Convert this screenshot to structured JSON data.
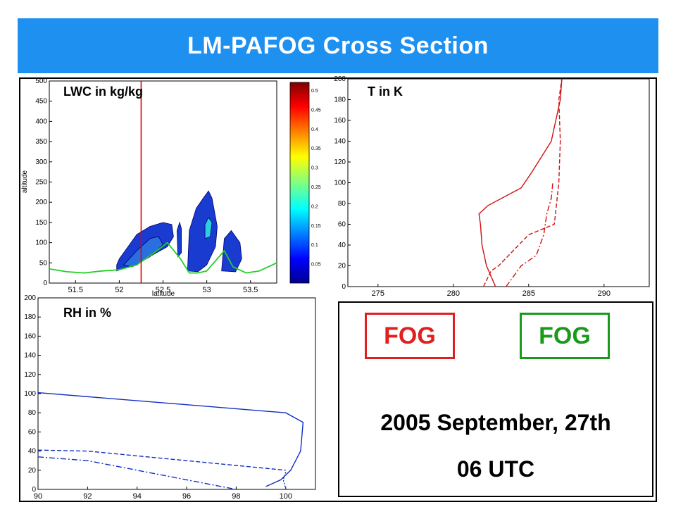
{
  "title": "LM-PAFOG Cross Section",
  "panels": {
    "lwc_label": "LWC in kg/kg",
    "t_label": "T in K",
    "rh_label": "RH in %"
  },
  "info": {
    "fog_red": "FOG",
    "fog_green": "FOG",
    "date": "2005 September, 27th",
    "time": "06 UTC"
  },
  "colors": {
    "banner": "#1e90f0",
    "fog_red": "#e02020",
    "fog_green": "#1a9a1a",
    "t_series": "#d01010",
    "rh_series": "#1030c0"
  },
  "chart_data": [
    {
      "type": "heatmap",
      "title": "LWC in kg/kg",
      "xlabel": "latitude",
      "ylabel": "altitude",
      "x_ticks": [
        "51.5",
        "52",
        "52.5",
        "53",
        "53.5"
      ],
      "y_ticks": [
        "0",
        "50",
        "100",
        "150",
        "200",
        "250",
        "300",
        "350",
        "400",
        "450",
        "500"
      ],
      "xlim": [
        51.2,
        53.8
      ],
      "ylim": [
        0,
        500
      ],
      "colorbar_ticks": [
        "0.05",
        "0.1",
        "0.15",
        "0.2",
        "0.25",
        "0.3",
        "0.35",
        "0.4",
        "0.45",
        "0.5"
      ],
      "vertical_marker_x": 52.25,
      "terrain_line": [
        [
          51.2,
          35
        ],
        [
          51.4,
          28
        ],
        [
          51.6,
          25
        ],
        [
          51.8,
          30
        ],
        [
          52.0,
          33
        ],
        [
          52.2,
          45
        ],
        [
          52.4,
          75
        ],
        [
          52.55,
          100
        ],
        [
          52.7,
          60
        ],
        [
          52.8,
          25
        ],
        [
          52.9,
          25
        ],
        [
          53.0,
          30
        ],
        [
          53.1,
          55
        ],
        [
          53.2,
          80
        ],
        [
          53.3,
          40
        ],
        [
          53.45,
          25
        ],
        [
          53.6,
          30
        ],
        [
          53.8,
          50
        ]
      ]
    },
    {
      "type": "line",
      "title": "T in K",
      "x_ticks": [
        "275",
        "280",
        "285",
        "290"
      ],
      "y_ticks": [
        "0",
        "20",
        "40",
        "60",
        "80",
        "100",
        "120",
        "140",
        "160",
        "180",
        "200"
      ],
      "xlim": [
        273,
        293
      ],
      "ylim": [
        0,
        200
      ],
      "series": [
        {
          "style": "solid",
          "points": [
            [
              282.8,
              0
            ],
            [
              282.5,
              10
            ],
            [
              282.2,
              20
            ],
            [
              281.9,
              40
            ],
            [
              281.8,
              60
            ],
            [
              281.7,
              70
            ],
            [
              282.3,
              78
            ],
            [
              284.5,
              95
            ],
            [
              285.2,
              110
            ],
            [
              286.5,
              140
            ],
            [
              287.1,
              180
            ],
            [
              287.2,
              200
            ]
          ]
        },
        {
          "style": "dashed",
          "points": [
            [
              282.0,
              0
            ],
            [
              282.5,
              15
            ],
            [
              283.0,
              20
            ],
            [
              285.0,
              50
            ],
            [
              286.7,
              60
            ],
            [
              287.0,
              100
            ],
            [
              287.1,
              140
            ],
            [
              287.0,
              180
            ],
            [
              287.2,
              200
            ]
          ]
        },
        {
          "style": "dashdot",
          "points": [
            [
              283.5,
              0
            ],
            [
              284.5,
              20
            ],
            [
              285.5,
              30
            ],
            [
              286.0,
              50
            ],
            [
              286.2,
              70
            ],
            [
              286.5,
              85
            ],
            [
              286.6,
              100
            ]
          ]
        }
      ]
    },
    {
      "type": "line",
      "title": "RH in %",
      "x_ticks": [
        "90",
        "92",
        "94",
        "96",
        "98",
        "100"
      ],
      "y_ticks": [
        "0",
        "20",
        "40",
        "60",
        "80",
        "100",
        "120",
        "140",
        "160",
        "180",
        "200"
      ],
      "xlim": [
        90,
        101.2
      ],
      "ylim": [
        0,
        200
      ],
      "series": [
        {
          "style": "solid",
          "points": [
            [
              90,
              101
            ],
            [
              100,
              80
            ],
            [
              100.7,
              70
            ],
            [
              100.6,
              40
            ],
            [
              100.2,
              20
            ],
            [
              99.8,
              10
            ],
            [
              99.2,
              3
            ]
          ]
        },
        {
          "style": "dashed",
          "points": [
            [
              90,
              41
            ],
            [
              92,
              40
            ],
            [
              100,
              20
            ]
          ]
        },
        {
          "style": "dashdot",
          "points": [
            [
              90,
              34
            ],
            [
              92,
              30
            ],
            [
              98,
              0
            ]
          ]
        },
        {
          "style": "dotted",
          "points": [
            [
              100,
              18
            ],
            [
              99.9,
              10
            ],
            [
              100,
              0
            ]
          ]
        }
      ]
    }
  ]
}
